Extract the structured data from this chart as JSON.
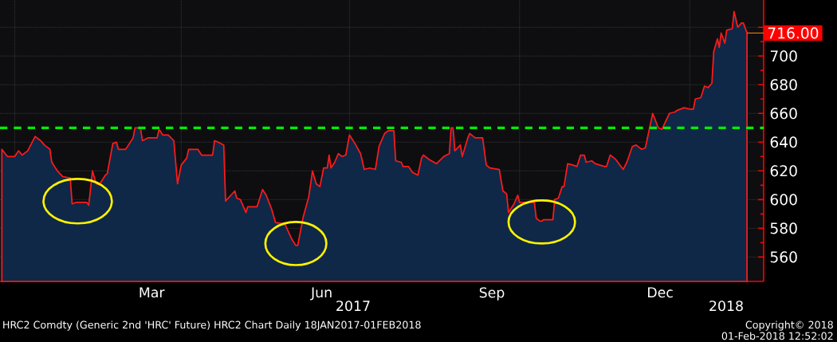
{
  "chart_data": {
    "type": "area",
    "x": [
      "2016-12-25",
      "2016-12-28",
      "2017-01-01",
      "2017-01-03",
      "2017-01-05",
      "2017-01-08",
      "2017-01-12",
      "2017-01-15",
      "2017-01-17",
      "2017-01-20",
      "2017-01-21",
      "2017-01-24",
      "2017-01-27",
      "2017-01-31",
      "2017-02-01",
      "2017-02-03",
      "2017-02-09",
      "2017-02-10",
      "2017-02-12",
      "2017-02-14",
      "2017-02-16",
      "2017-02-19",
      "2017-02-20",
      "2017-02-23",
      "2017-02-25",
      "2017-02-26",
      "2017-03-02",
      "2017-03-06",
      "2017-03-07",
      "2017-03-10",
      "2017-03-11",
      "2017-03-14",
      "2017-03-19",
      "2017-03-20",
      "2017-03-22",
      "2017-03-25",
      "2017-03-28",
      "2017-03-30",
      "2017-04-01",
      "2017-04-04",
      "2017-04-05",
      "2017-04-10",
      "2017-04-12",
      "2017-04-18",
      "2017-04-19",
      "2017-04-21",
      "2017-04-24",
      "2017-04-25",
      "2017-04-30",
      "2017-05-01",
      "2017-05-03",
      "2017-05-06",
      "2017-05-07",
      "2017-05-12",
      "2017-05-15",
      "2017-05-17",
      "2017-05-20",
      "2017-05-22",
      "2017-05-27",
      "2017-05-31",
      "2017-06-02",
      "2017-06-03",
      "2017-06-06",
      "2017-06-09",
      "2017-06-11",
      "2017-06-13",
      "2017-06-15",
      "2017-06-17",
      "2017-06-19",
      "2017-06-20",
      "2017-06-21",
      "2017-06-23",
      "2017-06-25",
      "2017-06-27",
      "2017-06-29",
      "2017-07-01",
      "2017-07-04",
      "2017-07-07",
      "2017-07-09",
      "2017-07-12",
      "2017-07-15",
      "2017-07-17",
      "2017-07-20",
      "2017-07-22",
      "2017-07-25",
      "2017-07-26",
      "2017-07-29",
      "2017-07-30",
      "2017-08-02",
      "2017-08-04",
      "2017-08-07",
      "2017-08-09",
      "2017-08-10",
      "2017-08-13",
      "2017-08-17",
      "2017-08-21",
      "2017-08-24",
      "2017-08-25",
      "2017-08-26",
      "2017-08-27",
      "2017-08-30",
      "2017-08-31",
      "2017-09-03",
      "2017-09-04",
      "2017-09-07",
      "2017-09-11",
      "2017-09-13",
      "2017-09-15",
      "2017-09-20",
      "2017-09-22",
      "2017-09-24",
      "2017-09-25",
      "2017-09-28",
      "2017-09-30",
      "2017-10-01",
      "2017-10-09",
      "2017-10-10",
      "2017-10-12",
      "2017-10-13",
      "2017-10-14",
      "2017-10-19",
      "2017-10-20",
      "2017-10-22",
      "2017-10-24",
      "2017-10-25",
      "2017-10-27",
      "2017-10-30",
      "2017-11-01",
      "2017-11-03",
      "2017-11-05",
      "2017-11-06",
      "2017-11-09",
      "2017-11-11",
      "2017-11-16",
      "2017-11-17",
      "2017-11-19",
      "2017-11-22",
      "2017-11-26",
      "2017-11-28",
      "2017-12-01",
      "2017-12-03",
      "2017-12-06",
      "2017-12-08",
      "2017-12-12",
      "2017-12-15",
      "2017-12-17",
      "2017-12-21",
      "2017-12-24",
      "2017-12-25",
      "2017-12-29",
      "2018-01-01",
      "2018-01-03",
      "2018-01-04",
      "2018-01-07",
      "2018-01-09",
      "2018-01-11",
      "2018-01-13",
      "2018-01-14",
      "2018-01-16",
      "2018-01-17",
      "2018-01-18",
      "2018-01-20",
      "2018-01-21",
      "2018-01-24",
      "2018-01-25",
      "2018-01-27",
      "2018-01-29",
      "2018-01-30",
      "2018-02-01"
    ],
    "values": [
      635,
      630,
      630,
      634,
      631,
      634,
      644,
      641,
      638,
      635,
      626,
      620,
      616,
      615,
      597,
      598,
      598,
      596,
      620,
      611,
      611,
      617,
      618,
      639,
      640,
      635,
      635,
      643,
      650,
      650,
      641,
      643,
      643,
      649,
      645,
      645,
      641,
      611,
      624,
      629,
      635,
      635,
      631,
      631,
      641,
      640,
      638,
      599,
      606,
      601,
      600,
      591,
      595,
      595,
      607,
      603,
      593,
      584,
      583,
      572,
      568,
      568,
      588,
      602,
      620,
      611,
      609,
      622,
      622,
      631,
      622,
      626,
      632,
      630,
      631,
      645,
      639,
      632,
      621,
      622,
      621,
      637,
      646,
      648,
      648,
      627,
      626,
      623,
      623,
      619,
      617,
      629,
      631,
      628,
      625,
      630,
      632,
      650,
      650,
      634,
      638,
      630,
      643,
      646,
      643,
      643,
      624,
      622,
      621,
      606,
      604,
      591,
      597,
      603,
      598,
      598,
      587,
      585,
      585,
      586,
      586,
      600,
      601,
      609,
      609,
      625,
      624,
      623,
      631,
      631,
      626,
      627,
      625,
      623,
      623,
      631,
      628,
      621,
      626,
      637,
      638,
      635,
      636,
      660,
      650,
      649,
      660,
      661,
      662,
      664,
      663,
      663,
      670,
      671,
      679,
      678,
      681,
      703,
      712,
      706,
      716,
      709,
      718,
      719,
      731,
      720,
      723,
      723,
      716
    ],
    "color": "#ff1a1a",
    "xlim": [
      "2016-12-24",
      "2018-02-10"
    ],
    "xticks": [
      {
        "value": "2017-01-01",
        "label": null
      },
      {
        "value": "2017-03-16",
        "label": "Mar"
      },
      {
        "value": "2017-04-01",
        "label": null
      },
      {
        "value": "2017-06-16",
        "label": "Jun"
      },
      {
        "value": "2017-07-01",
        "label": null
      },
      {
        "value": "2017-09-16",
        "label": "Sep"
      },
      {
        "value": "2017-10-01",
        "label": null
      },
      {
        "value": "2017-12-16",
        "label": "Dec"
      },
      {
        "value": "2018-01-01",
        "label": null
      }
    ],
    "ylim": [
      543,
      739
    ],
    "yticks": [
      560,
      580,
      600,
      620,
      640,
      660,
      680,
      700,
      {
        "value": 720,
        "label": null
      }
    ],
    "grid": true,
    "ref_lines": [
      {
        "axis": "y",
        "value": 650,
        "color": "#00ee00",
        "line_style": "dashed"
      }
    ],
    "annotations": [
      "HRC2 Comdty (Generic 2nd 'HRC' Future) HRC2 Chart Daily 18JAN2017-01FEB2018",
      "Copyright© 2018",
      "01-Feb-2018 12:52:02",
      "2017",
      "2018",
      {
        "text": "716.00",
        "x": "2018-02-01",
        "y": 716
      }
    ]
  }
}
